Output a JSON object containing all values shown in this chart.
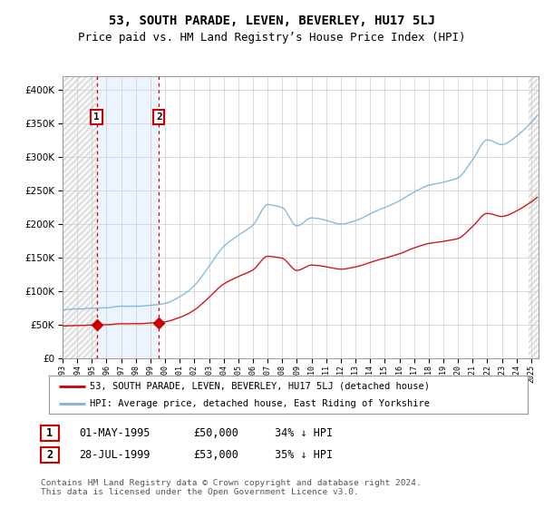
{
  "title": "53, SOUTH PARADE, LEVEN, BEVERLEY, HU17 5LJ",
  "subtitle": "Price paid vs. HM Land Registry’s House Price Index (HPI)",
  "ylim": [
    0,
    420000
  ],
  "yticks": [
    0,
    50000,
    100000,
    150000,
    200000,
    250000,
    300000,
    350000,
    400000
  ],
  "ytick_labels": [
    "£0",
    "£50K",
    "£100K",
    "£150K",
    "£200K",
    "£250K",
    "£300K",
    "£350K",
    "£400K"
  ],
  "hpi_color": "#7ab4d8",
  "price_color": "#cc0000",
  "background_color": "#ffffff",
  "sale1_x": 1995.33,
  "sale1_y": 50000,
  "sale2_x": 1999.58,
  "sale2_y": 53000,
  "xlim_left": 1993.0,
  "xlim_right": 2025.5,
  "legend_line1": "53, SOUTH PARADE, LEVEN, BEVERLEY, HU17 5LJ (detached house)",
  "legend_line2": "HPI: Average price, detached house, East Riding of Yorkshire",
  "table_row1": [
    "1",
    "01-MAY-1995",
    "£50,000",
    "34% ↓ HPI"
  ],
  "table_row2": [
    "2",
    "28-JUL-1999",
    "£53,000",
    "35% ↓ HPI"
  ],
  "footnote": "Contains HM Land Registry data © Crown copyright and database right 2024.\nThis data is licensed under the Open Government Licence v3.0.",
  "title_fontsize": 10,
  "subtitle_fontsize": 9
}
